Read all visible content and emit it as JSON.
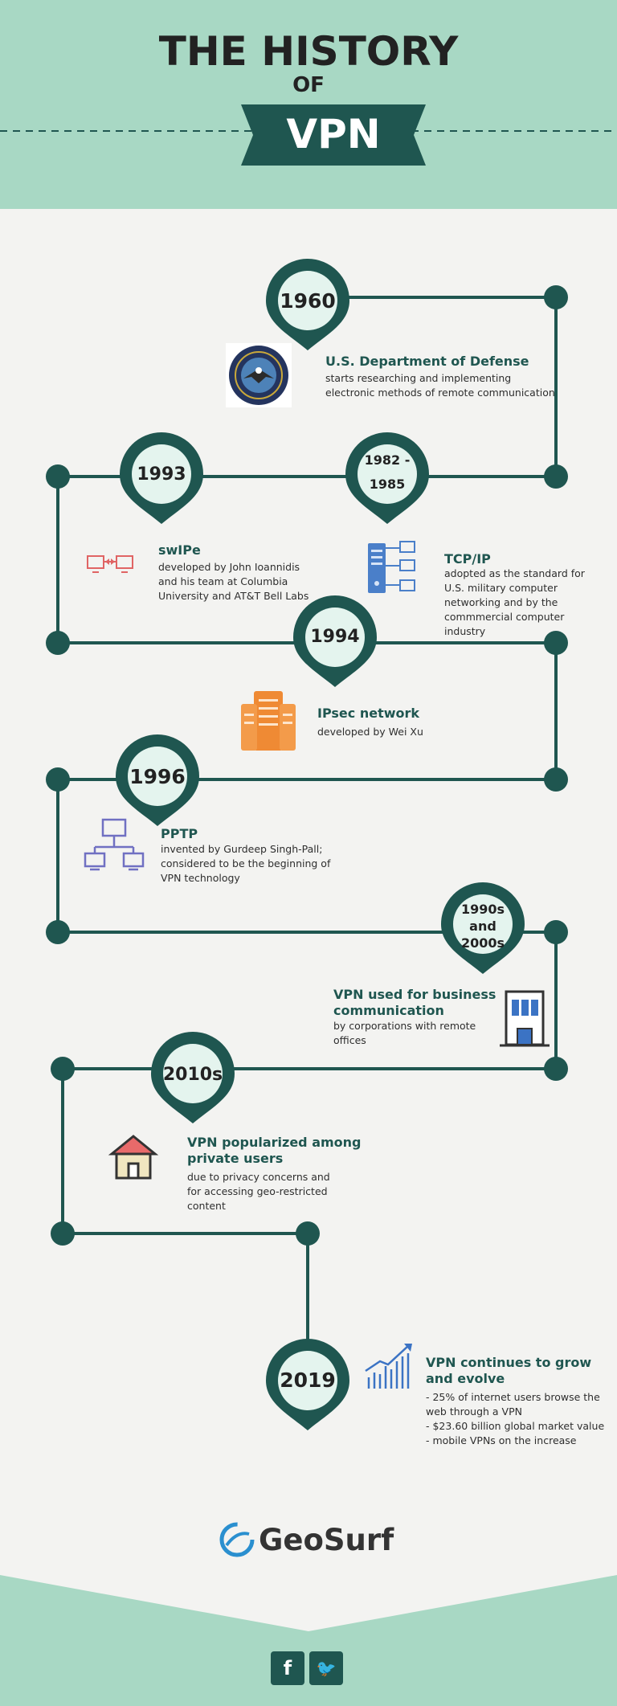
{
  "header": {
    "title_line1": "THE HISTORY",
    "title_line2": "OF",
    "title_line3": "VPN"
  },
  "events": [
    {
      "year": "1960",
      "title": "U.S. Department of Defense",
      "description": "starts researching and implementing\nelectronic methods of remote communication",
      "icon": "dod-seal-icon"
    },
    {
      "year": "1982 -\n1985",
      "title": "TCP/IP",
      "description": "adopted as the standard for\nU.S. military computer\nnetworking and by the\ncommmercial computer\nindustry",
      "icon": "server-network-icon"
    },
    {
      "year": "1993",
      "title": "swIPe",
      "description": "developed by John Ioannidis\nand his team at Columbia\nUniversity and AT&T Bell Labs",
      "icon": "linked-computers-icon"
    },
    {
      "year": "1994",
      "title": "IPsec network",
      "description": "developed by Wei Xu",
      "icon": "server-rack-icon"
    },
    {
      "year": "1996",
      "title": "PPTP",
      "description": "invented by Gurdeep Singh-Pall;\nconsidered to be the beginning of\nVPN technology",
      "icon": "computer-network-icon"
    },
    {
      "year": "1990s\nand\n2000s",
      "title": "VPN used for business\ncommunication",
      "description": "by corporations with remote\noffices",
      "icon": "office-building-icon"
    },
    {
      "year": "2010s",
      "title": "VPN popularized among\nprivate users",
      "description": "due to privacy concerns and\nfor accessing geo-restricted\ncontent",
      "icon": "house-icon"
    },
    {
      "year": "2019",
      "title": "VPN continues to grow\nand evolve",
      "description": "- 25% of internet users browse the\nweb through a VPN\n- $23.60 billion global market value\n- mobile VPNs on the increase",
      "icon": "growth-chart-icon"
    }
  ],
  "footer": {
    "brand": "GeoSurf",
    "social": [
      {
        "label": "f",
        "icon": "facebook-icon"
      },
      {
        "label": "🐦",
        "icon": "twitter-icon"
      }
    ]
  },
  "colors": {
    "header_bg": "#a8d8c4",
    "page_bg": "#f3f3f1",
    "accent": "#1f5650",
    "pin_fill": "#e4f4ee"
  }
}
